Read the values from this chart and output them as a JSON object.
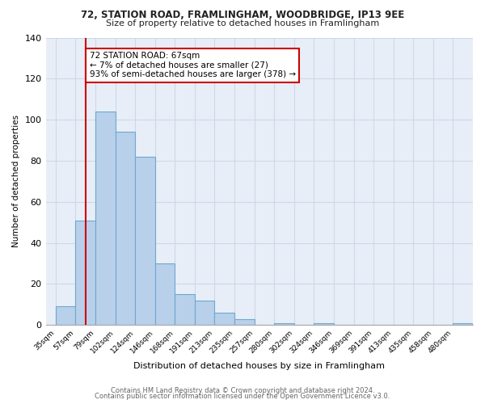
{
  "title1": "72, STATION ROAD, FRAMLINGHAM, WOODBRIDGE, IP13 9EE",
  "title2": "Size of property relative to detached houses in Framlingham",
  "xlabel": "Distribution of detached houses by size in Framlingham",
  "ylabel": "Number of detached properties",
  "bin_labels": [
    "35sqm",
    "57sqm",
    "79sqm",
    "102sqm",
    "124sqm",
    "146sqm",
    "168sqm",
    "191sqm",
    "213sqm",
    "235sqm",
    "257sqm",
    "280sqm",
    "302sqm",
    "324sqm",
    "346sqm",
    "369sqm",
    "391sqm",
    "413sqm",
    "435sqm",
    "458sqm",
    "480sqm"
  ],
  "bar_values": [
    9,
    51,
    104,
    94,
    82,
    30,
    15,
    12,
    6,
    3,
    0,
    1,
    0,
    1,
    0,
    0,
    0,
    0,
    0,
    0,
    1
  ],
  "bar_color": "#b8d0ea",
  "bar_edge_color": "#6fa8d0",
  "vline_x": 1.5,
  "vline_color": "#cc0000",
  "annotation_text": "72 STATION ROAD: 67sqm\n← 7% of detached houses are smaller (27)\n93% of semi-detached houses are larger (378) →",
  "annotation_box_color": "#ffffff",
  "annotation_box_edge_color": "#cc0000",
  "ylim": [
    0,
    140
  ],
  "yticks": [
    0,
    20,
    40,
    60,
    80,
    100,
    120,
    140
  ],
  "footer_line1": "Contains HM Land Registry data © Crown copyright and database right 2024.",
  "footer_line2": "Contains public sector information licensed under the Open Government Licence v3.0.",
  "background_color": "#ffffff",
  "grid_color": "#d0d8e8"
}
